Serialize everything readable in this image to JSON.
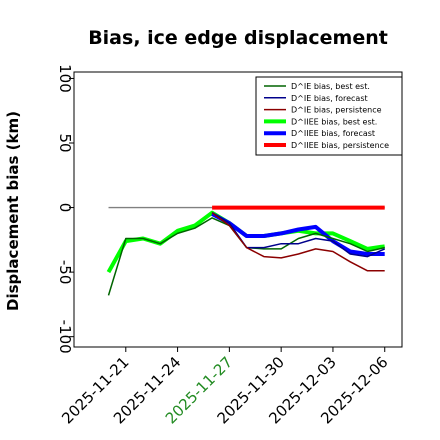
{
  "chart_data": {
    "type": "line",
    "title": "Bias, ice edge displacement",
    "ylabel": "Displacement bias (km)",
    "xlabel": "",
    "ylim": [
      -108,
      105
    ],
    "xlim": [
      "2025-11-18",
      "2025-12-07"
    ],
    "yticks": [
      100,
      50,
      0,
      -50,
      -100
    ],
    "ytick_labels": [
      "100",
      "50",
      "0",
      "-50",
      "-100"
    ],
    "xticks": [
      "2025-11-21",
      "2025-11-24",
      "2025-11-27",
      "2025-11-30",
      "2025-12-03",
      "2025-12-06"
    ],
    "highlight_tick": "2025-11-27",
    "highlight_color": "#228b22",
    "zero_line": {
      "x": [
        "2025-11-20",
        "2025-12-06"
      ],
      "y": 0,
      "color": "#808080"
    },
    "legend_position": "top-right",
    "series": [
      {
        "name": "D^IE bias, best est.",
        "color": "#006400",
        "width": 1.5,
        "x": [
          "2025-11-20",
          "2025-11-21",
          "2025-11-22",
          "2025-11-23",
          "2025-11-24",
          "2025-11-25",
          "2025-11-26",
          "2025-11-27",
          "2025-11-28",
          "2025-11-29",
          "2025-11-30",
          "2025-12-01",
          "2025-12-02",
          "2025-12-03",
          "2025-12-04",
          "2025-12-05",
          "2025-12-06"
        ],
        "y": [
          -68,
          -24,
          -24,
          -28,
          -20,
          -16,
          -8,
          -14,
          -31,
          -32,
          -32,
          -24,
          -20,
          -24,
          -28,
          -34,
          -31
        ]
      },
      {
        "name": "D^IE bias, forecast",
        "color": "#00008b",
        "width": 1.5,
        "x": [
          "2025-11-26",
          "2025-11-27",
          "2025-11-28",
          "2025-11-29",
          "2025-11-30",
          "2025-12-01",
          "2025-12-02",
          "2025-12-03",
          "2025-12-04",
          "2025-12-05",
          "2025-12-06"
        ],
        "y": [
          -4,
          -12,
          -31,
          -31,
          -28,
          -28,
          -24,
          -26,
          -36,
          -38,
          -32
        ]
      },
      {
        "name": "D^IE bias, persistence",
        "color": "#8b0000",
        "width": 1.5,
        "x": [
          "2025-11-26",
          "2025-11-27",
          "2025-11-28",
          "2025-11-29",
          "2025-11-30",
          "2025-12-01",
          "2025-12-02",
          "2025-12-03",
          "2025-12-04",
          "2025-12-05",
          "2025-12-06"
        ],
        "y": [
          -4,
          -14,
          -31,
          -38,
          -39,
          -36,
          -32,
          -34,
          -42,
          -49,
          -49
        ]
      },
      {
        "name": "D^IIEE bias, best est.",
        "color": "#00ff00",
        "width": 4,
        "x": [
          "2025-11-20",
          "2025-11-21",
          "2025-11-22",
          "2025-11-23",
          "2025-11-24",
          "2025-11-25",
          "2025-11-26",
          "2025-11-27",
          "2025-11-28",
          "2025-11-29",
          "2025-11-30",
          "2025-12-01",
          "2025-12-02",
          "2025-12-03",
          "2025-12-04",
          "2025-12-05",
          "2025-12-06"
        ],
        "y": [
          -50,
          -26,
          -24,
          -28,
          -18,
          -14,
          -4,
          -12,
          -22,
          -22,
          -20,
          -18,
          -20,
          -20,
          -26,
          -32,
          -30
        ]
      },
      {
        "name": "D^IIEE bias, forecast",
        "color": "#0000ff",
        "width": 4,
        "x": [
          "2025-11-26",
          "2025-11-27",
          "2025-11-28",
          "2025-11-29",
          "2025-11-30",
          "2025-12-01",
          "2025-12-02",
          "2025-12-03",
          "2025-12-04",
          "2025-12-05",
          "2025-12-06"
        ],
        "y": [
          -5,
          -12,
          -22,
          -22,
          -20,
          -17,
          -15,
          -26,
          -34,
          -36,
          -36
        ]
      },
      {
        "name": "D^IIEE bias, persistence",
        "color": "#ff0000",
        "width": 4,
        "x": [
          "2025-11-26",
          "2025-11-27",
          "2025-11-28",
          "2025-11-29",
          "2025-11-30",
          "2025-12-01",
          "2025-12-02",
          "2025-12-03",
          "2025-12-04",
          "2025-12-05",
          "2025-12-06"
        ],
        "y": [
          0,
          0,
          0,
          0,
          0,
          0,
          0,
          0,
          0,
          0,
          0
        ]
      }
    ]
  }
}
